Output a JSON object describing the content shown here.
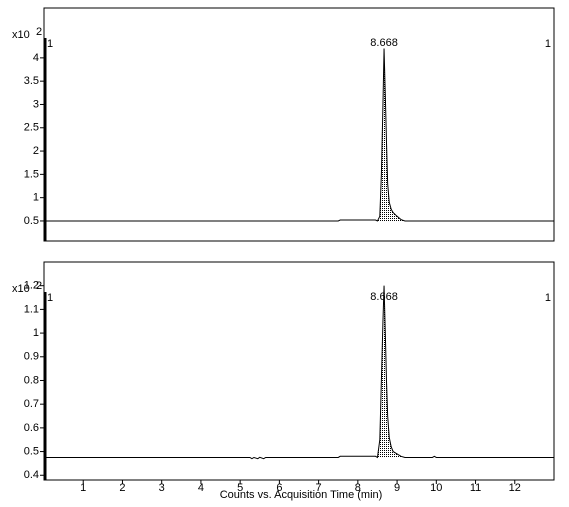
{
  "chart_data": [
    {
      "type": "line",
      "color": "#000000",
      "y_scale_label": "x10",
      "y_scale_exponent": "2",
      "segment_labels": [
        "1",
        "1"
      ],
      "peak_label": 8.668,
      "xlim": [
        0,
        13
      ],
      "ylim": [
        0.07,
        5.07
      ],
      "yticks": [
        0.5,
        1,
        1.5,
        2,
        2.5,
        3,
        3.5,
        4
      ],
      "x": [
        0,
        7.5,
        7.55,
        8.45,
        8.5,
        8.56,
        8.6,
        8.64,
        8.668,
        8.7,
        8.73,
        8.76,
        8.8,
        8.85,
        8.9,
        9.0,
        9.1,
        9.2,
        13
      ],
      "values": [
        0.5,
        0.5,
        0.52,
        0.52,
        0.5,
        0.6,
        1.5,
        3.0,
        4.2,
        3.2,
        2.2,
        1.3,
        0.9,
        0.75,
        0.68,
        0.6,
        0.53,
        0.5,
        0.5
      ],
      "peak_range": [
        4,
        17
      ]
    },
    {
      "type": "line",
      "color": "#000000",
      "y_scale_label": "x10",
      "y_scale_exponent": "2",
      "segment_labels": [
        "1",
        "1"
      ],
      "peak_label": 8.668,
      "x_label": "Counts vs. Acquisition Time (min)",
      "xlim": [
        0,
        13
      ],
      "ylim": [
        0.38,
        1.3
      ],
      "xticks": [
        1,
        2,
        3,
        4,
        5,
        6,
        7,
        8,
        9,
        10,
        11,
        12
      ],
      "yticks": [
        0.4,
        0.5,
        0.6,
        0.7,
        0.8,
        0.9,
        1,
        1.1,
        1.2
      ],
      "x": [
        0,
        5.25,
        5.3,
        5.35,
        5.45,
        5.5,
        5.6,
        5.65,
        7.5,
        7.55,
        8.45,
        8.5,
        8.56,
        8.6,
        8.64,
        8.668,
        8.7,
        8.73,
        8.76,
        8.8,
        8.85,
        8.9,
        9.0,
        9.1,
        9.2,
        9.9,
        9.95,
        10.0,
        13
      ],
      "values": [
        0.475,
        0.475,
        0.47,
        0.475,
        0.47,
        0.476,
        0.47,
        0.475,
        0.475,
        0.48,
        0.48,
        0.475,
        0.55,
        0.8,
        1.05,
        1.2,
        1.0,
        0.8,
        0.65,
        0.56,
        0.52,
        0.5,
        0.49,
        0.48,
        0.475,
        0.475,
        0.48,
        0.475,
        0.475
      ],
      "peak_range": [
        11,
        24
      ]
    }
  ]
}
